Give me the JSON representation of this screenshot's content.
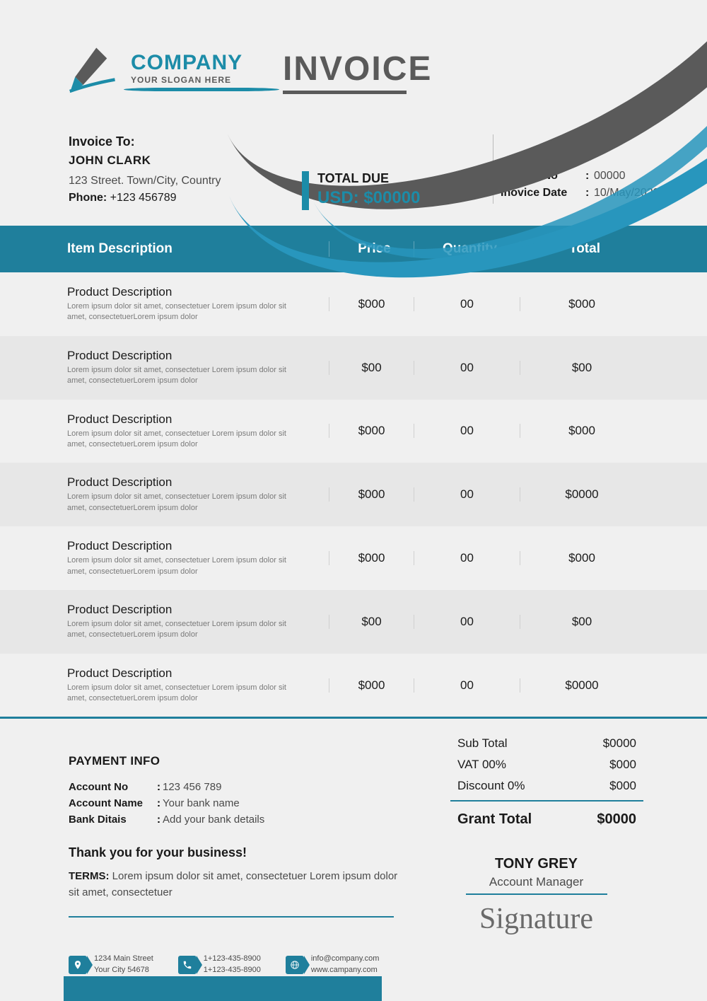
{
  "colors": {
    "primary": "#1f7f9c",
    "accent": "#1c8ca8",
    "greyDark": "#5a5a5a",
    "bg": "#f0f0f0",
    "rowAlt": "#e7e7e7"
  },
  "logo": {
    "company": "COMPANY",
    "slogan": "YOUR SLOGAN HERE"
  },
  "title": "INVOICE",
  "billTo": {
    "label": "Invoice To:",
    "name": "JOHN CLARK",
    "address": "123 Street. Town/City, Country",
    "phoneLabel": "Phone:",
    "phone": "+123 456789"
  },
  "totalDue": {
    "label": "TOTAL DUE",
    "amount": "USD: $00000"
  },
  "meta": {
    "noLabel": "Invoice No",
    "no": "00000",
    "dateLabel": "Inovice Date",
    "date": "10/May/2022"
  },
  "headers": {
    "desc": "Item Description",
    "price": "Price",
    "qty": "Quantity",
    "total": "Total"
  },
  "items": [
    {
      "title": "Product Description",
      "sub": "Lorem ipsum dolor sit amet, consectetuer Lorem ipsum dolor sit amet, consectetuerLorem ipsum dolor",
      "price": "$000",
      "qty": "00",
      "total": "$000"
    },
    {
      "title": "Product Description",
      "sub": "Lorem ipsum dolor sit amet, consectetuer Lorem ipsum dolor sit amet, consectetuerLorem ipsum dolor",
      "price": "$00",
      "qty": "00",
      "total": "$00"
    },
    {
      "title": "Product Description",
      "sub": "Lorem ipsum dolor sit amet, consectetuer Lorem ipsum dolor sit amet, consectetuerLorem ipsum dolor",
      "price": "$000",
      "qty": "00",
      "total": "$000"
    },
    {
      "title": "Product Description",
      "sub": "Lorem ipsum dolor sit amet, consectetuer Lorem ipsum dolor sit amet, consectetuerLorem ipsum dolor",
      "price": "$000",
      "qty": "00",
      "total": "$0000"
    },
    {
      "title": "Product Description",
      "sub": "Lorem ipsum dolor sit amet, consectetuer Lorem ipsum dolor sit amet, consectetuerLorem ipsum dolor",
      "price": "$000",
      "qty": "00",
      "total": "$000"
    },
    {
      "title": "Product Description",
      "sub": "Lorem ipsum dolor sit amet, consectetuer Lorem ipsum dolor sit amet, consectetuerLorem ipsum dolor",
      "price": "$00",
      "qty": "00",
      "total": "$00"
    },
    {
      "title": "Product Description",
      "sub": "Lorem ipsum dolor sit amet, consectetuer Lorem ipsum dolor sit amet, consectetuerLorem ipsum dolor",
      "price": "$000",
      "qty": "00",
      "total": "$0000"
    }
  ],
  "summary": {
    "subLabel": "Sub Total",
    "sub": "$0000",
    "vatLabel": "VAT 00%",
    "vat": "$000",
    "discLabel": "Discount 0%",
    "disc": "$000",
    "grandLabel": "Grant Total",
    "grand": "$0000"
  },
  "payment": {
    "title": "PAYMENT INFO",
    "acctNoLabel": "Account No",
    "acctNo": "123 456 789",
    "acctNameLabel": "Account Name",
    "acctName": "Your bank name",
    "bankLabel": "Bank Ditais",
    "bank": "Add your bank details"
  },
  "thank": "Thank you for your business!",
  "terms": {
    "label": "TERMS:",
    "text": "Lorem ipsum dolor sit amet, consectetuer Lorem ipsum dolor sit amet, consectetuer"
  },
  "signature": {
    "name": "TONY GREY",
    "role": "Account Manager",
    "script": "Signature"
  },
  "contacts": {
    "address": {
      "line1": "1234 Main Street",
      "line2": "Your City 54678"
    },
    "phone": {
      "line1": "1+123-435-8900",
      "line2": "1+123-435-8900"
    },
    "web": {
      "line1": "info@company.com",
      "line2": "www.campany.com"
    }
  }
}
